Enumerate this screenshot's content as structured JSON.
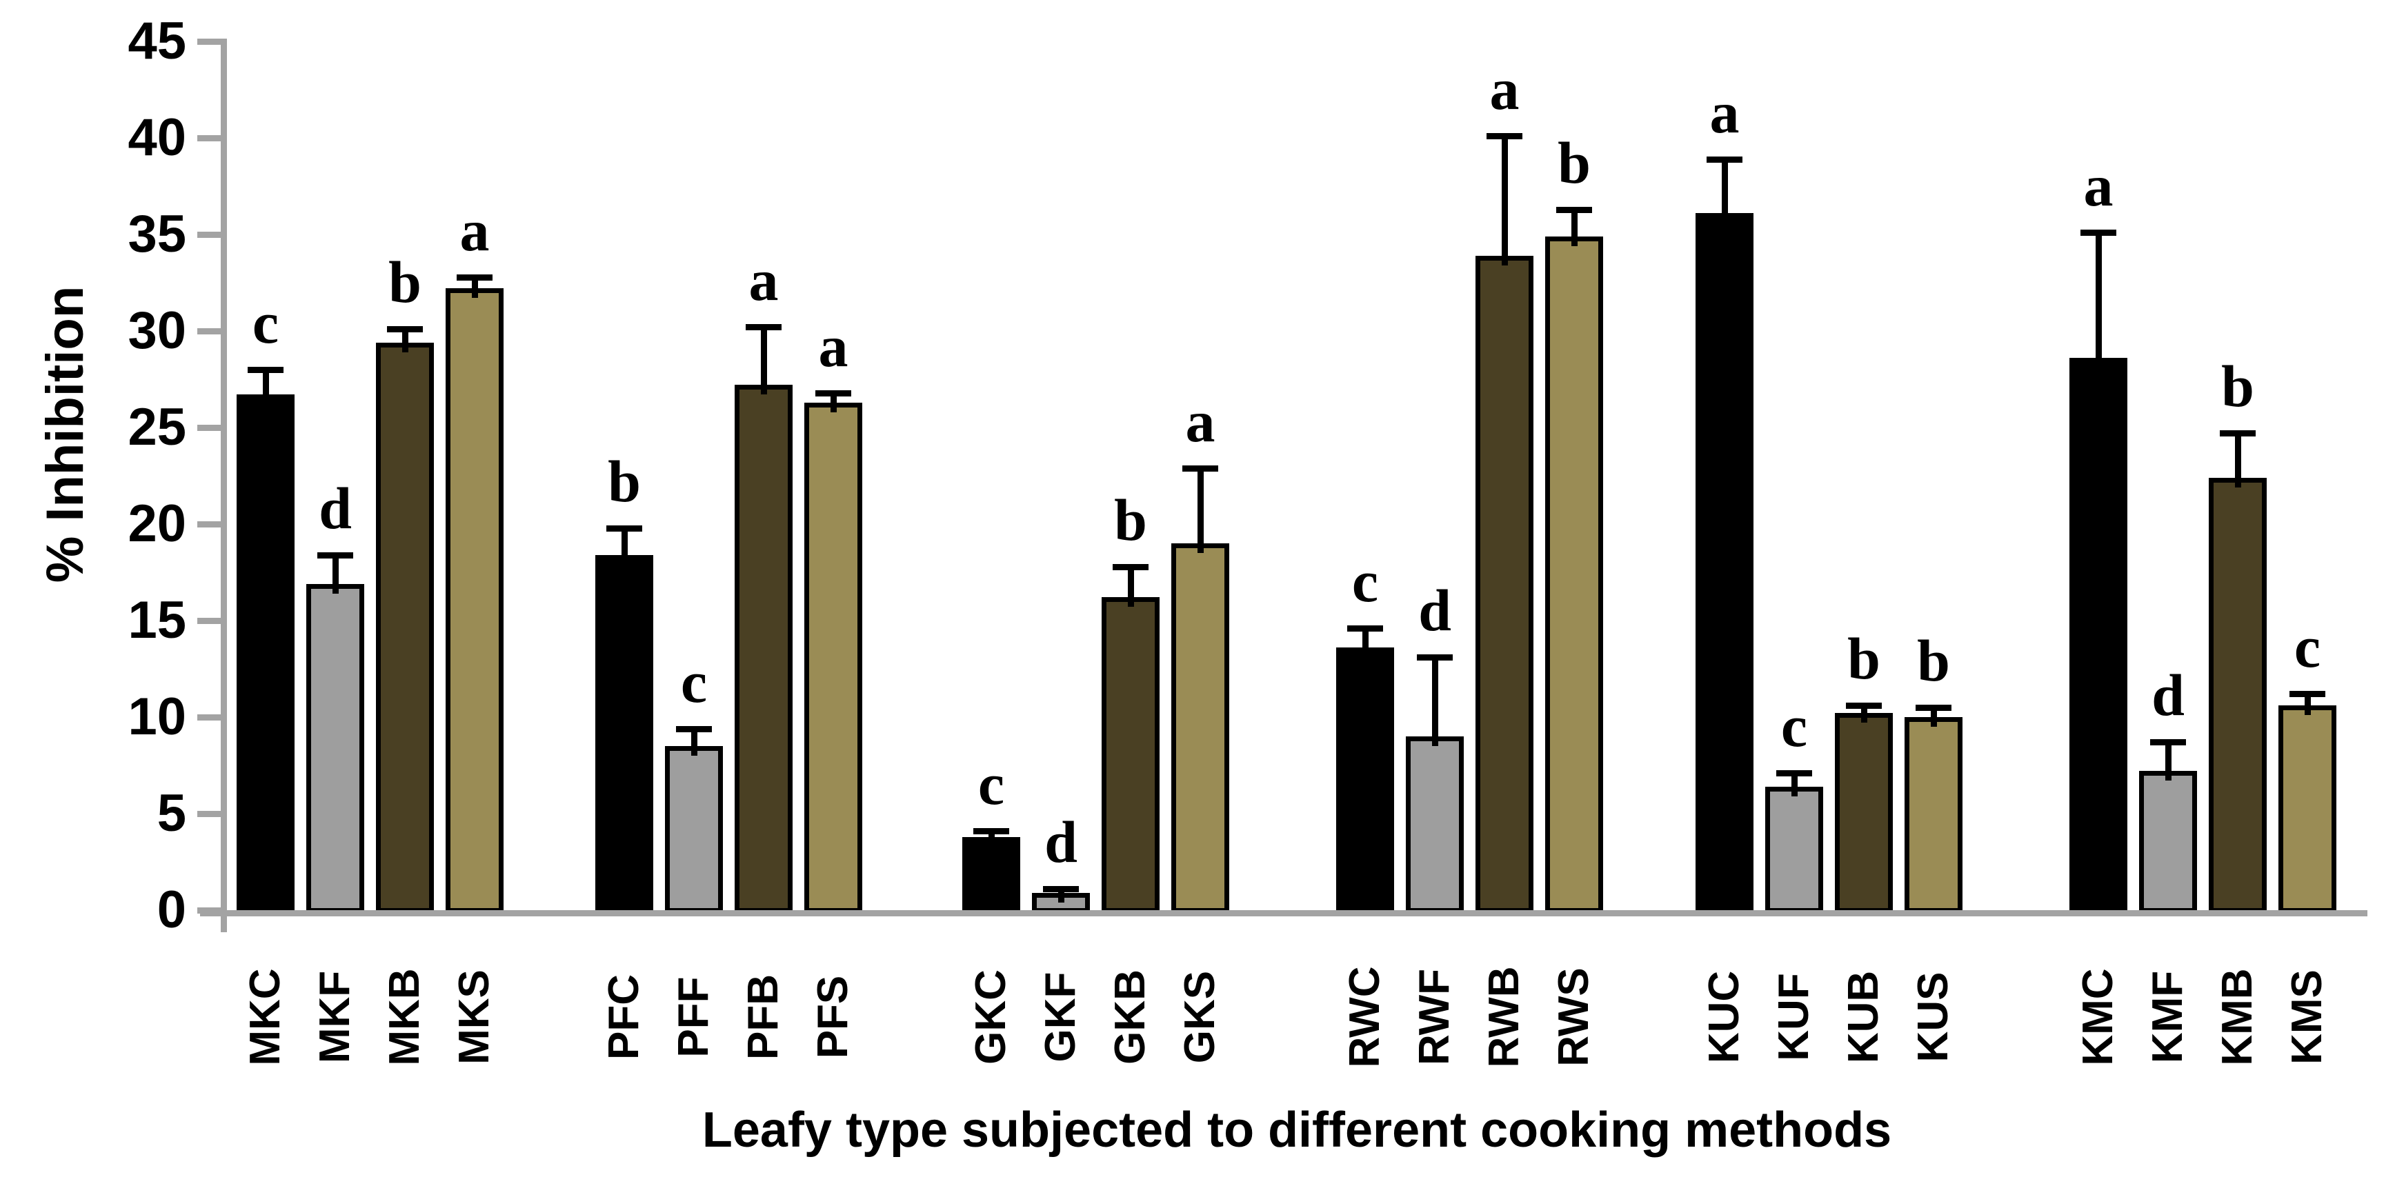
{
  "chart_data": {
    "type": "bar",
    "title": "",
    "xlabel": "Leafy type subjected to different cooking methods",
    "ylabel": "% Inhibition",
    "ylim": [
      0,
      45
    ],
    "ytick_step": 5,
    "yticks": [
      0,
      5,
      10,
      15,
      20,
      25,
      30,
      35,
      40,
      45
    ],
    "grid": false,
    "legend_position": "none",
    "bar_outline_color": "#000000",
    "axis_color": "#a3a3a3",
    "method_colors": {
      "C": "#000000",
      "F": "#9e9e9e",
      "B": "#4a4023",
      "S": "#9a8c55"
    },
    "groups": [
      {
        "name": "MK",
        "bars": [
          {
            "label": "MKC",
            "method": "C",
            "value": 26.7,
            "error_top": 28.0,
            "letter": "c"
          },
          {
            "label": "MKF",
            "method": "F",
            "value": 16.9,
            "error_top": 18.4,
            "letter": "d"
          },
          {
            "label": "MKB",
            "method": "B",
            "value": 29.4,
            "error_top": 30.1,
            "letter": "b"
          },
          {
            "label": "MKS",
            "method": "S",
            "value": 32.2,
            "error_top": 32.8,
            "letter": "a"
          }
        ]
      },
      {
        "name": "PF",
        "bars": [
          {
            "label": "PFC",
            "method": "C",
            "value": 18.4,
            "error_top": 19.8,
            "letter": "b"
          },
          {
            "label": "PFF",
            "method": "F",
            "value": 8.5,
            "error_top": 9.4,
            "letter": "c"
          },
          {
            "label": "PFB",
            "method": "B",
            "value": 27.2,
            "error_top": 30.2,
            "letter": "a"
          },
          {
            "label": "PFS",
            "method": "S",
            "value": 26.3,
            "error_top": 26.8,
            "letter": "a"
          }
        ]
      },
      {
        "name": "GK",
        "bars": [
          {
            "label": "GKC",
            "method": "C",
            "value": 3.8,
            "error_top": 4.1,
            "letter": "c"
          },
          {
            "label": "GKF",
            "method": "F",
            "value": 0.9,
            "error_top": 1.1,
            "letter": "d"
          },
          {
            "label": "GKB",
            "method": "B",
            "value": 16.2,
            "error_top": 17.8,
            "letter": "b"
          },
          {
            "label": "GKS",
            "method": "S",
            "value": 19.0,
            "error_top": 22.9,
            "letter": "a"
          }
        ]
      },
      {
        "name": "RW",
        "bars": [
          {
            "label": "RWC",
            "method": "C",
            "value": 13.6,
            "error_top": 14.6,
            "letter": "c"
          },
          {
            "label": "RWF",
            "method": "F",
            "value": 9.0,
            "error_top": 13.1,
            "letter": "d"
          },
          {
            "label": "RWB",
            "method": "B",
            "value": 33.9,
            "error_top": 40.1,
            "letter": "a"
          },
          {
            "label": "RWS",
            "method": "S",
            "value": 34.9,
            "error_top": 36.3,
            "letter": "b"
          }
        ]
      },
      {
        "name": "KU",
        "bars": [
          {
            "label": "KUC",
            "method": "C",
            "value": 36.1,
            "error_top": 38.9,
            "letter": "a"
          },
          {
            "label": "KUF",
            "method": "F",
            "value": 6.4,
            "error_top": 7.1,
            "letter": "c"
          },
          {
            "label": "KUB",
            "method": "B",
            "value": 10.2,
            "error_top": 10.6,
            "letter": "b"
          },
          {
            "label": "KUS",
            "method": "S",
            "value": 10.0,
            "error_top": 10.5,
            "letter": "b"
          }
        ]
      },
      {
        "name": "KM",
        "bars": [
          {
            "label": "KMC",
            "method": "C",
            "value": 28.6,
            "error_top": 35.1,
            "letter": "a"
          },
          {
            "label": "KMF",
            "method": "F",
            "value": 7.2,
            "error_top": 8.7,
            "letter": "d"
          },
          {
            "label": "KMB",
            "method": "B",
            "value": 22.4,
            "error_top": 24.7,
            "letter": "b"
          },
          {
            "label": "KMS",
            "method": "S",
            "value": 10.6,
            "error_top": 11.2,
            "letter": "c"
          }
        ]
      }
    ]
  }
}
